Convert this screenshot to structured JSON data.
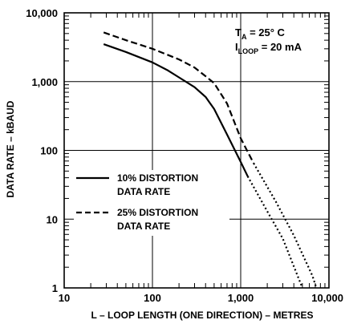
{
  "chart_data": {
    "type": "line",
    "title": "",
    "xlabel": "L – LOOP LENGTH (ONE DIRECTION) – METRES",
    "ylabel": "DATA RATE – kBAUD",
    "x_scale": "log",
    "y_scale": "log",
    "xlim": [
      10,
      10000
    ],
    "ylim": [
      1,
      10000
    ],
    "grid": true,
    "x_ticks": [
      {
        "value": 10,
        "label": "10"
      },
      {
        "value": 100,
        "label": "100"
      },
      {
        "value": 1000,
        "label": "1,000"
      },
      {
        "value": 10000,
        "label": "10,000"
      }
    ],
    "y_ticks": [
      {
        "value": 1,
        "label": "1"
      },
      {
        "value": 10,
        "label": "10"
      },
      {
        "value": 100,
        "label": "100"
      },
      {
        "value": 1000,
        "label": "1,000"
      },
      {
        "value": 10000,
        "label": "10,000"
      }
    ],
    "annotation": {
      "line1": {
        "main": "T",
        "sub": "A",
        "rest": " = 25° C"
      },
      "line2": {
        "main": "I",
        "sub": "LOOP",
        "rest": " = 20 mA"
      }
    },
    "legend_position": "left-lower",
    "series": [
      {
        "name_line1": "10% DISTORTION",
        "name_line2": "DATA RATE",
        "style": "solid",
        "points": [
          [
            28,
            3500
          ],
          [
            50,
            2700
          ],
          [
            100,
            1900
          ],
          [
            150,
            1450
          ],
          [
            200,
            1150
          ],
          [
            300,
            830
          ],
          [
            400,
            600
          ],
          [
            500,
            400
          ],
          [
            700,
            170
          ],
          [
            1000,
            68
          ],
          [
            1200,
            42
          ]
        ],
        "dotted_points": [
          [
            1200,
            42
          ],
          [
            2000,
            13
          ],
          [
            3000,
            5.2
          ],
          [
            5000,
            1
          ]
        ]
      },
      {
        "name_line1": "25% DISTORTION",
        "name_line2": "DATA RATE",
        "style": "dashed",
        "points": [
          [
            28,
            5200
          ],
          [
            50,
            4000
          ],
          [
            100,
            3000
          ],
          [
            200,
            2100
          ],
          [
            300,
            1600
          ],
          [
            400,
            1200
          ],
          [
            500,
            950
          ],
          [
            700,
            480
          ],
          [
            1000,
            150
          ],
          [
            1400,
            65
          ]
        ],
        "dotted_points": [
          [
            1400,
            65
          ],
          [
            2500,
            18
          ],
          [
            4000,
            5.8
          ],
          [
            6500,
            1.5
          ],
          [
            7200,
            1
          ]
        ]
      }
    ]
  }
}
